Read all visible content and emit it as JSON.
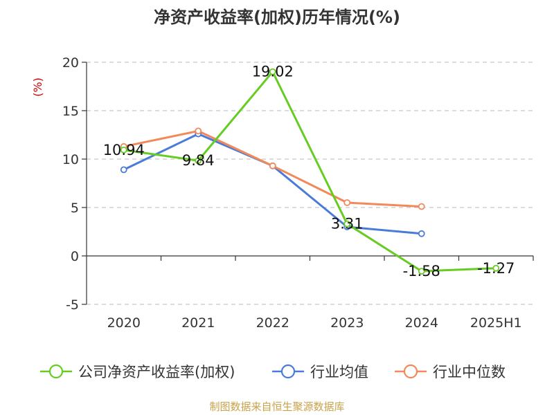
{
  "chart_data": {
    "type": "line",
    "title": "净资产收益率(加权)历年情况(%)",
    "ylabel": "(%)",
    "ylabel_color": "#cc0000",
    "categories": [
      "2020",
      "2021",
      "2022",
      "2023",
      "2024",
      "2025H1"
    ],
    "y_ticks": [
      "20",
      "15",
      "10",
      "5",
      "0",
      "-5"
    ],
    "ylim": [
      -5,
      20
    ],
    "grid": true,
    "legend_position": "bottom",
    "series": [
      {
        "name": "公司净资产收益率(加权)",
        "color": "#66cc22",
        "values": [
          10.94,
          9.84,
          19.02,
          3.31,
          -1.58,
          -1.27
        ],
        "labels": [
          "10.94",
          "9.84",
          "19.02",
          "3.31",
          "-1.58",
          "-1.27"
        ]
      },
      {
        "name": "行业均值",
        "color": "#4a7bd8",
        "values": [
          8.9,
          12.6,
          9.3,
          3.0,
          2.3,
          null
        ]
      },
      {
        "name": "行业中位数",
        "color": "#f2895a",
        "values": [
          11.3,
          12.9,
          9.3,
          5.5,
          5.1,
          null
        ]
      }
    ]
  },
  "source": {
    "text": "制图数据来自恒生聚源数据库",
    "color": "#c9a24a"
  }
}
